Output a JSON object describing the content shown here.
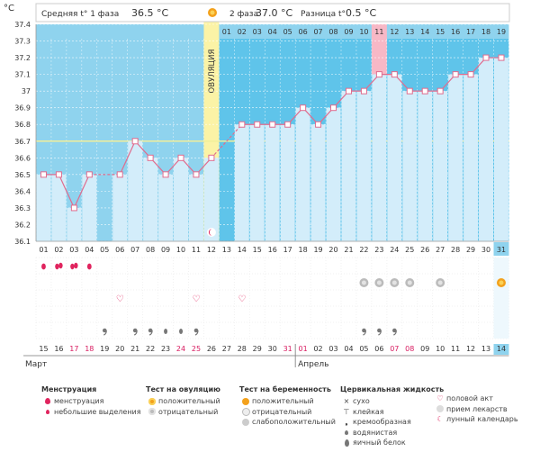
{
  "header": {
    "left_label": "Средняя t° 1 фаза",
    "left_value": "36.5 °C",
    "right_label": "2 фаза",
    "right_value": "37.0 °C",
    "diff_label": "Разница t°",
    "diff_value": "0.5 °C"
  },
  "chart_data": {
    "type": "line",
    "ylabel": "°C",
    "ylim": [
      36.1,
      37.4
    ],
    "yticks": [
      36.1,
      36.2,
      36.3,
      36.4,
      36.5,
      36.6,
      36.7,
      36.8,
      36.9,
      37,
      37.1,
      37.2,
      37.3,
      37.4
    ],
    "cycle_days": [
      "01",
      "02",
      "03",
      "04",
      "05",
      "06",
      "07",
      "08",
      "09",
      "10",
      "11",
      "12",
      "13",
      "14",
      "15",
      "16",
      "17",
      "18",
      "19",
      "20",
      "21",
      "22",
      "23",
      "24",
      "25",
      "26",
      "27",
      "28",
      "29",
      "30",
      "31"
    ],
    "second_phase_days": [
      "01",
      "02",
      "03",
      "04",
      "05",
      "06",
      "07",
      "08",
      "09",
      "10",
      "11",
      "12",
      "13",
      "14",
      "15",
      "16",
      "17",
      "18",
      "19"
    ],
    "temperatures": [
      36.5,
      36.5,
      36.3,
      36.5,
      null,
      36.5,
      36.7,
      36.6,
      36.5,
      36.6,
      36.5,
      36.6,
      null,
      36.8,
      36.8,
      36.8,
      36.8,
      36.9,
      36.8,
      36.9,
      37.0,
      37.0,
      37.1,
      37.1,
      37.0,
      37.0,
      37.0,
      37.1,
      37.1,
      37.2,
      37.2
    ],
    "coverline": 36.7,
    "ovulation_label": "ОВУЛЯЦИЯ",
    "ovulation_day": 12,
    "calendar_dates": [
      "15",
      "16",
      "17",
      "18",
      "19",
      "20",
      "21",
      "22",
      "23",
      "24",
      "25",
      "26",
      "27",
      "28",
      "29",
      "30",
      "31",
      "01",
      "02",
      "03",
      "04",
      "05",
      "06",
      "07",
      "08",
      "09",
      "10",
      "11",
      "12",
      "13",
      "14"
    ],
    "red_date_indices": [
      2,
      3,
      9,
      10,
      16,
      17,
      23,
      24
    ],
    "highlighted_date_index": 30,
    "months": [
      "Март",
      "Апрель"
    ],
    "highlighted_cycle_day_index": 30,
    "colors": {
      "top_band": "#8fd3ee",
      "column": "#d3edfa",
      "phase2_bg": "#5fc4ea",
      "line": "#e06c8e",
      "ovulation": "#fbf3a6",
      "coverline": "#f2ef9a",
      "pink_cell": "#f7b8c6",
      "highlight": "#8fd3ee"
    },
    "markers": {
      "menstruation": [
        [
          0,
          "drop"
        ],
        [
          1,
          "drop2"
        ],
        [
          2,
          "drop2"
        ],
        [
          3,
          "drop"
        ]
      ],
      "ovulation_tests": [
        [
          21,
          "neg"
        ],
        [
          22,
          "neg"
        ],
        [
          23,
          "neg"
        ],
        [
          24,
          "neg"
        ],
        [
          26,
          "neg"
        ],
        [
          30,
          "pos"
        ]
      ],
      "intercourse": [
        [
          5
        ],
        [
          10
        ],
        [
          13
        ]
      ],
      "mucus": [
        [
          4,
          "creamy"
        ],
        [
          6,
          "creamy"
        ],
        [
          7,
          "creamy"
        ],
        [
          8,
          "watery"
        ],
        [
          9,
          "watery"
        ],
        [
          10,
          "creamy"
        ],
        [
          21,
          "creamy"
        ],
        [
          22,
          "creamy"
        ],
        [
          23,
          "creamy"
        ]
      ],
      "lunar": [
        [
          11
        ]
      ]
    }
  },
  "legend": {
    "menstruation": {
      "title": "Менструация",
      "items": [
        "менструация",
        "небольшие выделения"
      ]
    },
    "ovulation_test": {
      "title": "Тест на овуляцию",
      "items": [
        "положительный",
        "отрицательный"
      ]
    },
    "pregnancy_test": {
      "title": "Тест на беременность",
      "items": [
        "положительный",
        "отрицательный",
        "слабоположительный"
      ]
    },
    "cervical": {
      "title": "Цервикальная жидкость",
      "items": [
        "сухо",
        "клейкая",
        "кремообразная",
        "водянистая",
        "яичный белок"
      ]
    },
    "other": {
      "items": [
        "половой акт",
        "прием лекарств",
        "лунный календарь"
      ]
    }
  }
}
